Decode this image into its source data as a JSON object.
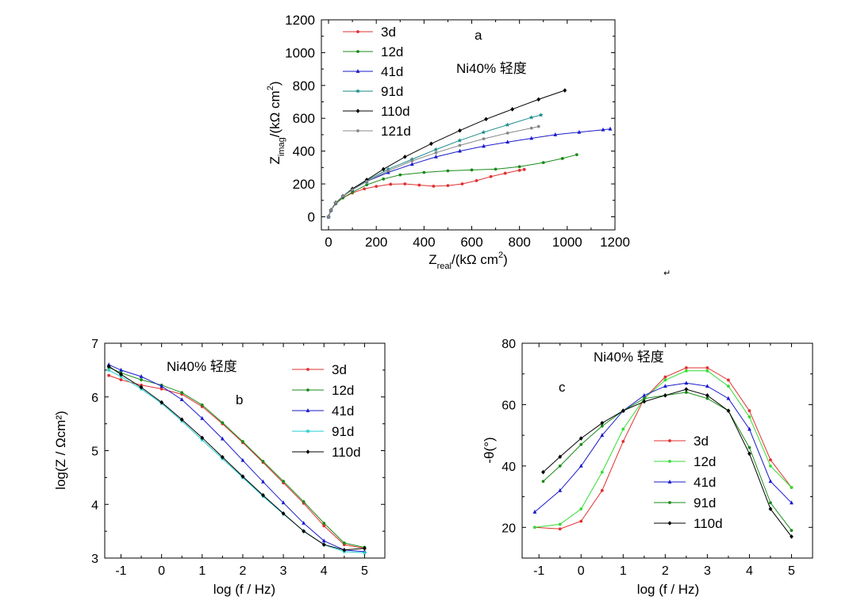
{
  "chart_data": [
    {
      "id": "a",
      "type": "line",
      "panel_label": "a",
      "annotation": "Ni40% 轻度",
      "xlabel": {
        "main": "Z",
        "sub": "real",
        "rest": "/(kΩ cm",
        "sup": "2",
        "close": ")"
      },
      "ylabel": {
        "main": "Z",
        "sub": "imag",
        "rest": "/(kΩ cm",
        "sup": "2",
        "close": ")"
      },
      "xlim": [
        -30,
        1200
      ],
      "ylim": [
        -80,
        1200
      ],
      "xticks": [
        0,
        200,
        400,
        600,
        800,
        1000,
        1200
      ],
      "yticks": [
        0,
        200,
        400,
        600,
        800,
        1000,
        1200
      ],
      "legend_position": "top-left",
      "series": [
        {
          "name": "3d",
          "color": "#e03030",
          "marker": "dot",
          "x": [
            0,
            10,
            30,
            60,
            100,
            150,
            200,
            260,
            320,
            380,
            440,
            500,
            560,
            620,
            680,
            740,
            800,
            820
          ],
          "y": [
            0,
            40,
            80,
            115,
            145,
            170,
            185,
            198,
            200,
            193,
            186,
            190,
            200,
            220,
            245,
            265,
            283,
            288
          ]
        },
        {
          "name": "12d",
          "color": "#1a8a1a",
          "marker": "dot",
          "x": [
            0,
            10,
            30,
            60,
            100,
            160,
            230,
            300,
            400,
            500,
            600,
            700,
            800,
            900,
            980,
            1040
          ],
          "y": [
            0,
            40,
            80,
            115,
            150,
            195,
            230,
            255,
            270,
            280,
            285,
            290,
            305,
            330,
            355,
            378
          ]
        },
        {
          "name": "41d",
          "color": "#1a1acc",
          "marker": "triangle",
          "x": [
            0,
            10,
            30,
            60,
            100,
            160,
            250,
            350,
            450,
            550,
            650,
            750,
            850,
            950,
            1050,
            1150,
            1180
          ],
          "y": [
            0,
            40,
            85,
            125,
            165,
            215,
            270,
            320,
            365,
            400,
            430,
            455,
            478,
            500,
            515,
            530,
            535
          ]
        },
        {
          "name": "91d",
          "color": "#1a8a8a",
          "marker": "star",
          "x": [
            0,
            10,
            30,
            60,
            100,
            160,
            250,
            350,
            450,
            550,
            650,
            750,
            850,
            890
          ],
          "y": [
            0,
            40,
            85,
            125,
            170,
            220,
            290,
            350,
            410,
            465,
            515,
            560,
            605,
            620
          ]
        },
        {
          "name": "110d",
          "color": "#000000",
          "marker": "diamond",
          "x": [
            0,
            10,
            30,
            60,
            100,
            160,
            230,
            320,
            430,
            550,
            660,
            770,
            880,
            990
          ],
          "y": [
            0,
            40,
            85,
            125,
            170,
            225,
            290,
            365,
            445,
            525,
            595,
            655,
            715,
            770
          ]
        },
        {
          "name": "121d",
          "color": "#888888",
          "marker": "dot",
          "x": [
            0,
            10,
            30,
            60,
            100,
            160,
            250,
            350,
            450,
            550,
            650,
            750,
            850,
            880
          ],
          "y": [
            0,
            40,
            85,
            125,
            165,
            215,
            280,
            340,
            390,
            435,
            475,
            510,
            540,
            550
          ]
        }
      ]
    },
    {
      "id": "b",
      "type": "line",
      "panel_label": "b",
      "annotation": "Ni40%  轻度",
      "xlabel": {
        "text": "log (f / Hz)"
      },
      "ylabel": {
        "text": "log(Z / Ωcm²)"
      },
      "xlim": [
        -1.4,
        5.5
      ],
      "ylim": [
        3,
        7
      ],
      "xticks": [
        -1,
        0,
        1,
        2,
        3,
        4,
        5
      ],
      "yticks": [
        3,
        4,
        5,
        6,
        7
      ],
      "legend_position": "top-right",
      "series": [
        {
          "name": "3d",
          "color": "#e03030",
          "marker": "dot",
          "x": [
            -1.3,
            -1,
            -0.5,
            0,
            0.5,
            1,
            1.5,
            2,
            2.5,
            3,
            3.5,
            4,
            4.5,
            5
          ],
          "y": [
            6.4,
            6.32,
            6.22,
            6.15,
            6.05,
            5.82,
            5.5,
            5.15,
            4.78,
            4.4,
            4.02,
            3.6,
            3.25,
            3.18
          ]
        },
        {
          "name": "12d",
          "color": "#1a8a1a",
          "marker": "dot",
          "x": [
            -1.3,
            -1,
            -0.5,
            0,
            0.5,
            1,
            1.5,
            2,
            2.5,
            3,
            3.5,
            4,
            4.5,
            5
          ],
          "y": [
            6.55,
            6.45,
            6.32,
            6.22,
            6.08,
            5.85,
            5.52,
            5.17,
            4.8,
            4.43,
            4.05,
            3.65,
            3.28,
            3.2
          ]
        },
        {
          "name": "41d",
          "color": "#1a1acc",
          "marker": "triangle",
          "x": [
            -1.3,
            -1,
            -0.5,
            0,
            0.5,
            1,
            1.5,
            2,
            2.5,
            3,
            3.5,
            4,
            4.5,
            5
          ],
          "y": [
            6.6,
            6.5,
            6.38,
            6.2,
            5.95,
            5.6,
            5.22,
            4.82,
            4.42,
            4.03,
            3.65,
            3.32,
            3.15,
            3.12
          ]
        },
        {
          "name": "91d",
          "color": "#22cccc",
          "marker": "star",
          "x": [
            -1.3,
            -1,
            -0.5,
            0,
            0.5,
            1,
            1.5,
            2,
            2.5,
            3,
            3.5,
            4,
            4.5,
            5
          ],
          "y": [
            6.5,
            6.38,
            6.15,
            5.88,
            5.55,
            5.2,
            4.85,
            4.5,
            4.15,
            3.82,
            3.5,
            3.25,
            3.12,
            3.1
          ]
        },
        {
          "name": "110d",
          "color": "#000000",
          "marker": "diamond",
          "x": [
            -1.3,
            -1,
            -0.5,
            0,
            0.5,
            1,
            1.5,
            2,
            2.5,
            3,
            3.5,
            4,
            4.5,
            5
          ],
          "y": [
            6.57,
            6.42,
            6.18,
            5.9,
            5.58,
            5.24,
            4.88,
            4.52,
            4.17,
            3.83,
            3.5,
            3.25,
            3.15,
            3.18
          ]
        }
      ]
    },
    {
      "id": "c",
      "type": "line",
      "panel_label": "c",
      "annotation": "Ni40%  轻度",
      "xlabel": {
        "text": "log (f / Hz)"
      },
      "ylabel": {
        "text": "-θ(°)"
      },
      "xlim": [
        -1.4,
        5.5
      ],
      "ylim": [
        10,
        80
      ],
      "xticks": [
        -1,
        0,
        1,
        2,
        3,
        4,
        5
      ],
      "yticks": [
        20,
        40,
        60,
        80
      ],
      "legend_position": "center",
      "series": [
        {
          "name": "3d",
          "color": "#e03030",
          "marker": "dot",
          "x": [
            -1.1,
            -0.5,
            0,
            0.5,
            1,
            1.5,
            2,
            2.5,
            3,
            3.5,
            4,
            4.5,
            5
          ],
          "y": [
            20,
            19.5,
            22,
            32,
            48,
            62,
            69,
            72,
            72,
            68,
            58,
            42,
            33
          ]
        },
        {
          "name": "12d",
          "color": "#33dd33",
          "marker": "dot",
          "x": [
            -1.1,
            -0.5,
            0,
            0.5,
            1,
            1.5,
            2,
            2.5,
            3,
            3.5,
            4,
            4.5,
            5
          ],
          "y": [
            20,
            21,
            26,
            38,
            52,
            62,
            68,
            71,
            71,
            66,
            56,
            40,
            33
          ]
        },
        {
          "name": "41d",
          "color": "#1a1acc",
          "marker": "triangle",
          "x": [
            -1.1,
            -0.5,
            0,
            0.5,
            1,
            1.5,
            2,
            2.5,
            3,
            3.5,
            4,
            4.5,
            5
          ],
          "y": [
            25,
            32,
            40,
            50,
            58,
            63,
            66,
            67,
            66,
            62,
            52,
            35,
            28
          ]
        },
        {
          "name": "91d",
          "color": "#1a8a1a",
          "marker": "dot",
          "x": [
            -0.9,
            -0.5,
            0,
            0.5,
            1,
            1.5,
            2,
            2.5,
            3,
            3.5,
            4,
            4.5,
            5
          ],
          "y": [
            35,
            40,
            47,
            53,
            58,
            62,
            63,
            64,
            62,
            58,
            46,
            28,
            19
          ]
        },
        {
          "name": "110d",
          "color": "#000000",
          "marker": "diamond",
          "x": [
            -0.9,
            -0.5,
            0,
            0.5,
            1,
            1.5,
            2,
            2.5,
            3,
            3.5,
            4,
            4.5,
            5
          ],
          "y": [
            38,
            43,
            49,
            54,
            58,
            61,
            63,
            65,
            63,
            58,
            44,
            26,
            17
          ]
        }
      ]
    }
  ]
}
